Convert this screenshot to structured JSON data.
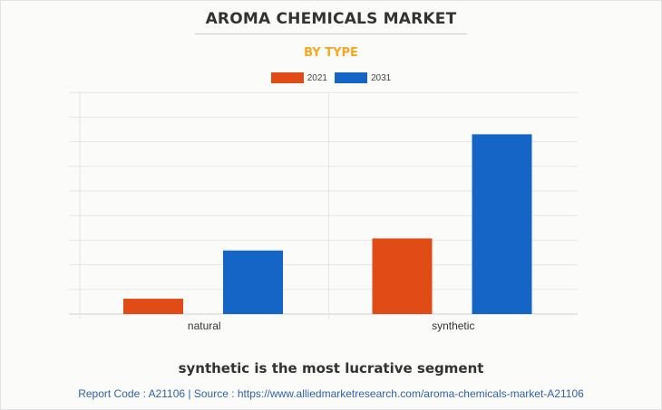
{
  "header": {
    "title": "AROMA CHEMICALS MARKET",
    "subtitle": "BY TYPE"
  },
  "colors": {
    "subtitle": "#f5a623",
    "series_2021": "#e04b16",
    "series_2031": "#1565c6",
    "footer": "#2f63b0",
    "grid": "#e6e6e6"
  },
  "legend": {
    "items": [
      {
        "label": "2021",
        "color": "#e04b16"
      },
      {
        "label": "2031",
        "color": "#1565c6"
      }
    ]
  },
  "chart_data": {
    "type": "bar",
    "categories": [
      "natural",
      "synthetic"
    ],
    "series": [
      {
        "name": "2021",
        "values": [
          0.7,
          3.45
        ]
      },
      {
        "name": "2031",
        "values": [
          2.9,
          8.2
        ]
      }
    ],
    "ylim": [
      0,
      9
    ],
    "grid": true,
    "legend_position": "top-center"
  },
  "caption": "synthetic is the most lucrative segment",
  "footer": {
    "text": "Report Code : A21106  |  Source : https://www.alliedmarketresearch.com/aroma-chemicals-market-A21106"
  }
}
